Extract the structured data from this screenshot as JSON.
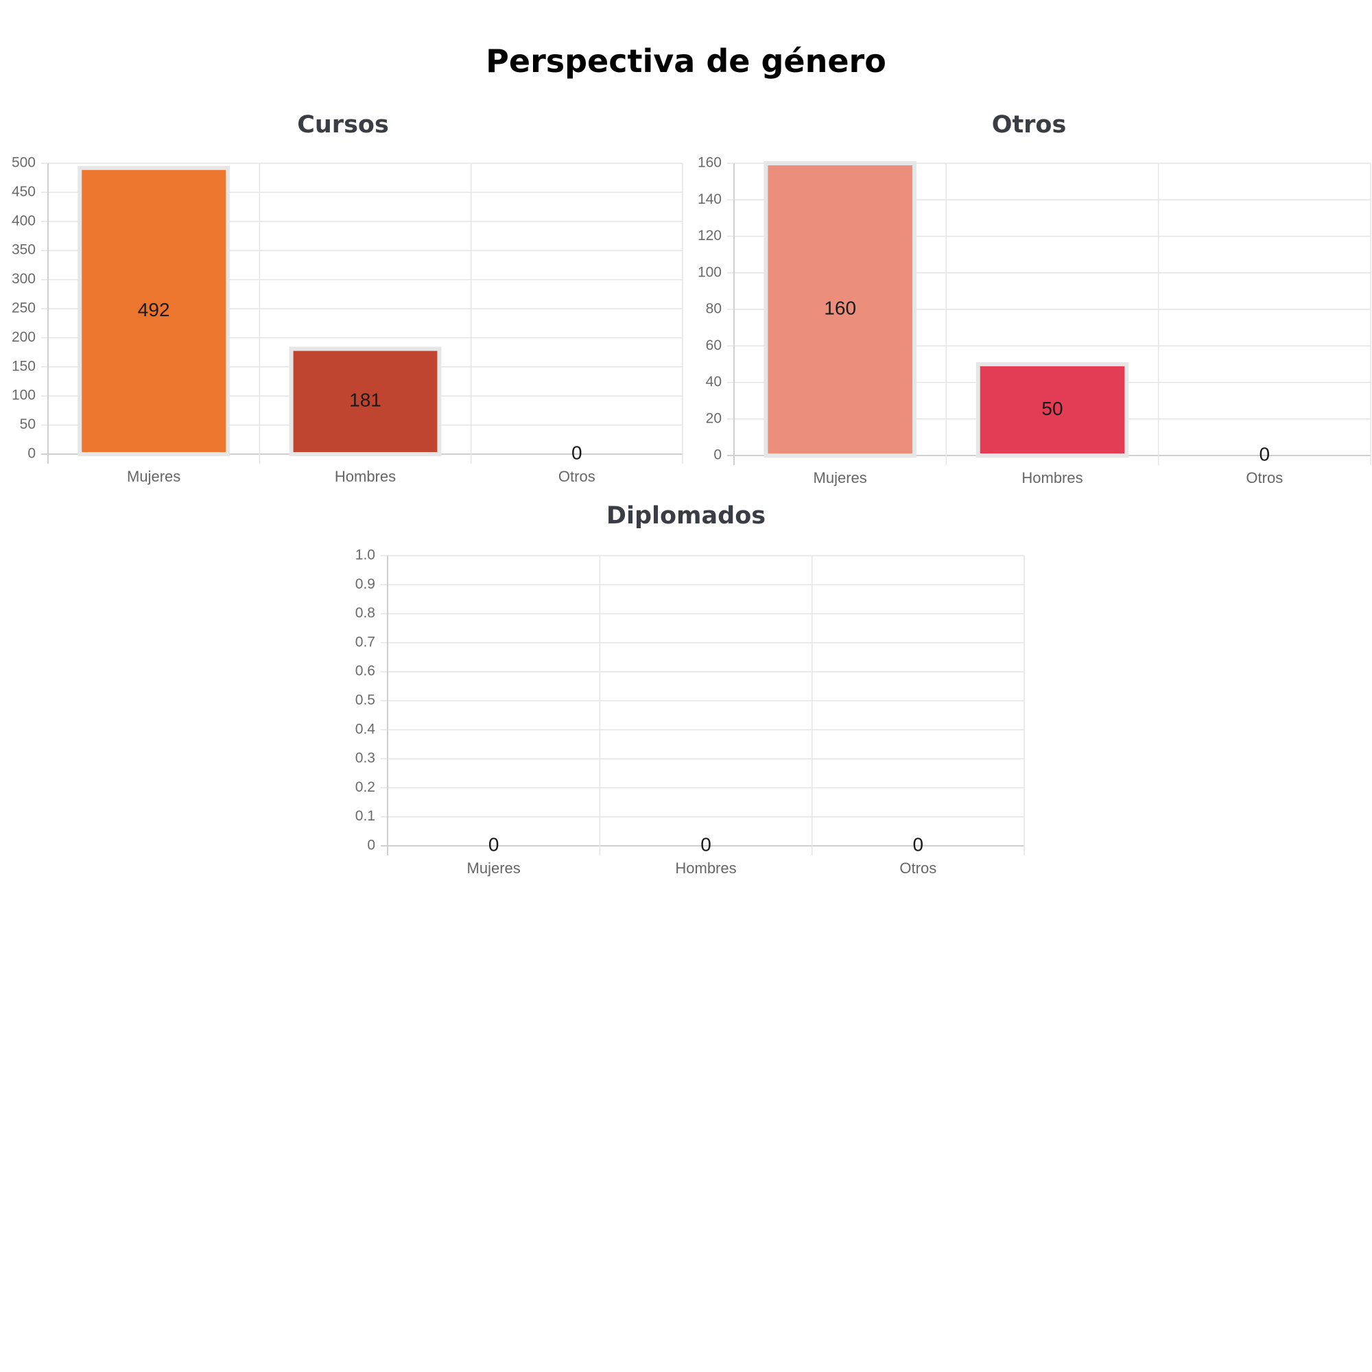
{
  "page": {
    "title": "Perspectiva de género"
  },
  "chart_data": [
    {
      "type": "bar",
      "title": "Cursos",
      "categories": [
        "Mujeres",
        "Hombres",
        "Otros"
      ],
      "values": [
        492,
        181,
        0
      ],
      "colors": [
        "#ec762e",
        "#bf4530",
        "#cccccc"
      ],
      "ylim": [
        0,
        500
      ],
      "yticks": [
        0,
        50,
        100,
        150,
        200,
        250,
        300,
        350,
        400,
        450,
        500
      ],
      "grid": true,
      "xlabel": "",
      "ylabel": ""
    },
    {
      "type": "bar",
      "title": "Otros",
      "categories": [
        "Mujeres",
        "Hombres",
        "Otros"
      ],
      "values": [
        160,
        50,
        0
      ],
      "colors": [
        "#ec8e7c",
        "#e33c55",
        "#cccccc"
      ],
      "ylim": [
        0,
        160
      ],
      "yticks": [
        0,
        20,
        40,
        60,
        80,
        100,
        120,
        140,
        160
      ],
      "grid": true,
      "xlabel": "",
      "ylabel": ""
    },
    {
      "type": "bar",
      "title": "Diplomados",
      "categories": [
        "Mujeres",
        "Hombres",
        "Otros"
      ],
      "values": [
        0,
        0,
        0
      ],
      "colors": [
        "#cccccc",
        "#cccccc",
        "#cccccc"
      ],
      "ylim": [
        0,
        1.0
      ],
      "yticks": [
        "0",
        "0.1",
        "0.2",
        "0.3",
        "0.4",
        "0.5",
        "0.6",
        "0.7",
        "0.8",
        "0.9",
        "1.0"
      ],
      "grid": true,
      "xlabel": "",
      "ylabel": ""
    }
  ]
}
